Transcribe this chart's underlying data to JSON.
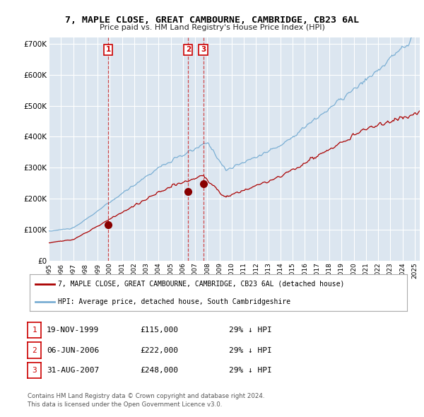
{
  "title": "7, MAPLE CLOSE, GREAT CAMBOURNE, CAMBRIDGE, CB23 6AL",
  "subtitle": "Price paid vs. HM Land Registry's House Price Index (HPI)",
  "background_color": "#ffffff",
  "plot_bg_color": "#dce6f0",
  "grid_color": "#ffffff",
  "sale_line_color": "#aa0000",
  "hpi_line_color": "#7bafd4",
  "legend_sale_label": "7, MAPLE CLOSE, GREAT CAMBOURNE, CAMBRIDGE, CB23 6AL (detached house)",
  "legend_hpi_label": "HPI: Average price, detached house, South Cambridgeshire",
  "ylabel_ticks": [
    0,
    100000,
    200000,
    300000,
    400000,
    500000,
    600000,
    700000
  ],
  "ylabel_labels": [
    "£0",
    "£100K",
    "£200K",
    "£300K",
    "£400K",
    "£500K",
    "£600K",
    "£700K"
  ],
  "ylim": [
    0,
    720000
  ],
  "footer_line1": "Contains HM Land Registry data © Crown copyright and database right 2024.",
  "footer_line2": "This data is licensed under the Open Government Licence v3.0.",
  "table_rows": [
    {
      "num": "1",
      "date": "19-NOV-1999",
      "price": "£115,000",
      "note": "29% ↓ HPI"
    },
    {
      "num": "2",
      "date": "06-JUN-2006",
      "price": "£222,000",
      "note": "29% ↓ HPI"
    },
    {
      "num": "3",
      "date": "31-AUG-2007",
      "price": "£248,000",
      "note": "29% ↓ HPI"
    }
  ],
  "sale_transactions": [
    {
      "date": "1999-11-19",
      "price": 115000,
      "label": "1"
    },
    {
      "date": "2006-06-06",
      "price": 222000,
      "label": "2"
    },
    {
      "date": "2007-08-31",
      "price": 248000,
      "label": "3"
    }
  ]
}
